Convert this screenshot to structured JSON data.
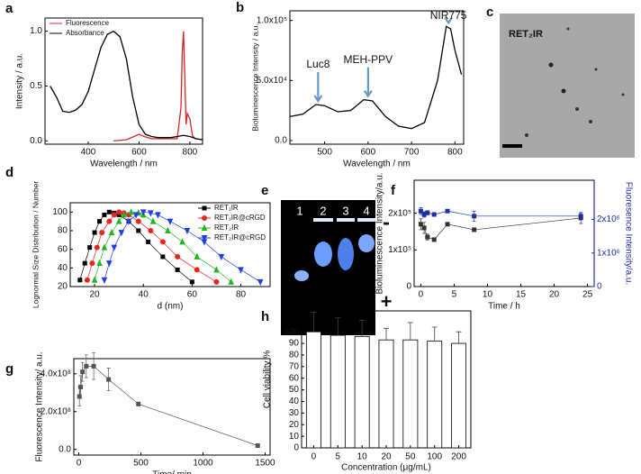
{
  "panel_labels": [
    "a",
    "b",
    "c",
    "d",
    "e",
    "f",
    "g",
    "h"
  ],
  "image_c": {
    "label": "RET₂IR"
  },
  "gel": {
    "lanes": [
      "1",
      "2",
      "3",
      "4"
    ],
    "signs": [
      "-",
      "+"
    ]
  },
  "chart_data": [
    {
      "type": "line",
      "xlabel": "Wavelength / nm",
      "ylabel": "Intensity / a.u.",
      "xlim": [
        230,
        850
      ],
      "xticks": [
        400,
        600,
        800
      ],
      "ylim": [
        -0.03,
        1.12
      ],
      "yticks": [
        {
          "value": 0,
          "label": "0.0"
        },
        {
          "value": 0.5,
          "label": "0.5"
        },
        {
          "value": 1,
          "label": "1.0"
        }
      ],
      "legend": "upper left",
      "series": [
        {
          "name": "Fluorescence",
          "color": "#d62728",
          "x": [
            500,
            550,
            580,
            600,
            620,
            650,
            700,
            750,
            765,
            770,
            775,
            780,
            785,
            790,
            800,
            810,
            820,
            850
          ],
          "values": [
            0,
            0.01,
            0.04,
            0.06,
            0.04,
            0.02,
            0.02,
            0.02,
            0.3,
            0.8,
            1.0,
            0.6,
            0.15,
            0.25,
            0.2,
            0.05,
            0.02,
            0.01
          ]
        },
        {
          "name": "Absorbance",
          "color": "#000000",
          "x": [
            250,
            275,
            300,
            325,
            350,
            375,
            400,
            425,
            450,
            475,
            500,
            525,
            550,
            575,
            600,
            625,
            650,
            675,
            700,
            725,
            750,
            775,
            800,
            825,
            850
          ],
          "values": [
            0.5,
            0.4,
            0.27,
            0.26,
            0.28,
            0.33,
            0.45,
            0.65,
            0.85,
            0.97,
            1.0,
            0.95,
            0.75,
            0.4,
            0.15,
            0.06,
            0.04,
            0.03,
            0.03,
            0.03,
            0.04,
            0.05,
            0.04,
            0.02,
            0.01
          ]
        }
      ]
    },
    {
      "type": "line",
      "xlabel": "Wavelength / nm",
      "ylabel": "Bioluminescence Intensity / a.u.",
      "xlim": [
        420,
        820
      ],
      "xticks": [
        500,
        600,
        700,
        800
      ],
      "ylim": [
        -3000,
        108000
      ],
      "yticks": [
        {
          "value": 0,
          "label": "0.0"
        },
        {
          "value": 50000,
          "label": "5.0x10⁴"
        },
        {
          "value": 100000,
          "label": "1.0x10⁵"
        }
      ],
      "annotations": [
        {
          "text": "Luc8",
          "x": 485
        },
        {
          "text": "MEH-PPV",
          "x": 600
        },
        {
          "text": "NIR775",
          "x": 785
        }
      ],
      "series": [
        {
          "color": "#000000",
          "x": [
            420,
            450,
            480,
            500,
            530,
            560,
            590,
            610,
            640,
            670,
            700,
            730,
            760,
            780,
            790,
            800,
            815
          ],
          "values": [
            20000,
            22000,
            30000,
            29000,
            24000,
            25000,
            34000,
            33000,
            20000,
            12000,
            10000,
            15000,
            50000,
            95000,
            93000,
            75000,
            55000
          ]
        }
      ]
    },
    {
      "type": "line",
      "xlabel": "d (nm)",
      "ylabel": "Lognormal Size Distribution / Number",
      "xlim": [
        10,
        92
      ],
      "xticks": [
        20,
        40,
        60,
        80
      ],
      "ylim": [
        20,
        110
      ],
      "yticks": [
        20,
        40,
        60,
        80,
        100
      ],
      "legend": "upper right",
      "series": [
        {
          "name": "RET₁IR",
          "color": "#000000",
          "marker": "square",
          "x": [
            14,
            16,
            18,
            20,
            22,
            24,
            26,
            28,
            30,
            34,
            38,
            42,
            48,
            54,
            60
          ],
          "values": [
            27,
            45,
            62,
            78,
            90,
            97,
            100,
            99,
            97,
            90,
            80,
            68,
            52,
            38,
            25
          ]
        },
        {
          "name": "RET₁IR@cRGD",
          "color": "#e8261c",
          "marker": "circle",
          "x": [
            17,
            19,
            21,
            23,
            26,
            28,
            30,
            32,
            34,
            38,
            43,
            48,
            54,
            62,
            70
          ],
          "values": [
            27,
            45,
            62,
            78,
            90,
            97,
            100,
            99,
            97,
            90,
            80,
            68,
            52,
            38,
            25
          ]
        },
        {
          "name": "RET₂IR",
          "color": "#1fb81f",
          "marker": "triangle",
          "x": [
            20,
            22,
            24,
            27,
            30,
            32,
            35,
            38,
            40,
            44,
            50,
            56,
            62,
            70,
            76
          ],
          "values": [
            27,
            45,
            62,
            78,
            90,
            97,
            100,
            99,
            97,
            90,
            80,
            68,
            52,
            38,
            25
          ]
        },
        {
          "name": "RET₂IR@cRGD",
          "color": "#1f3fe8",
          "marker": "triangle-down",
          "x": [
            24,
            26,
            28,
            31,
            34,
            37,
            40,
            43,
            46,
            51,
            58,
            65,
            72,
            80,
            88
          ],
          "values": [
            27,
            45,
            62,
            78,
            90,
            97,
            100,
            99,
            97,
            90,
            80,
            68,
            52,
            38,
            25
          ]
        }
      ]
    },
    {
      "type": "line",
      "xlabel": "Time / h",
      "ylabel": "Bioluminescence Intensity/a.u.",
      "y2label": "Fluoresence Intensity/a.u.",
      "xlim": [
        -1,
        26
      ],
      "xticks": [
        0,
        5,
        10,
        15,
        20,
        25
      ],
      "ylim": [
        0,
        290000
      ],
      "yticks": [
        0,
        {
          "value": 100000,
          "label": "1x10⁵"
        },
        {
          "value": 200000,
          "label": "2x10⁵"
        }
      ],
      "y2lim": [
        0,
        3170000
      ],
      "y2ticks": [
        0,
        {
          "value": 1000000,
          "label": "1x10⁶"
        },
        {
          "value": 2000000,
          "label": "2x10⁶"
        }
      ],
      "series": [
        {
          "color": "#333333",
          "marker": "square",
          "x": [
            0,
            0.5,
            1,
            2,
            4,
            8,
            24
          ],
          "values": [
            170000,
            160000,
            135000,
            128000,
            170000,
            155000,
            187000
          ],
          "errors": [
            15000,
            15000,
            8000,
            5000,
            3000,
            3000,
            15000
          ]
        },
        {
          "color": "#1f2fa8",
          "marker": "square",
          "axis": "y2",
          "x": [
            0,
            0.5,
            1,
            2,
            4,
            8,
            24
          ],
          "values": [
            2250000,
            2150000,
            2200000,
            2150000,
            2250000,
            2100000,
            2100000
          ],
          "errors": [
            100000,
            80000,
            60000,
            50000,
            40000,
            150000,
            100000
          ]
        }
      ]
    },
    {
      "type": "line",
      "xlabel": "Time/ min",
      "ylabel": "Fluorescence Intensity/ a.u.",
      "xlim": [
        -40,
        1540
      ],
      "xticks": [
        0,
        500,
        1000,
        1500
      ],
      "ylim": [
        -30000000,
        480000000
      ],
      "yticks": [
        {
          "value": 0,
          "label": "0.0"
        },
        {
          "value": 200000000,
          "label": "2.0x10⁸"
        },
        {
          "value": 400000000,
          "label": "4.0x10⁸"
        }
      ],
      "series": [
        {
          "color": "#555555",
          "marker": "square",
          "x": [
            5,
            15,
            30,
            60,
            120,
            240,
            480,
            1440
          ],
          "values": [
            280000000,
            330000000,
            410000000,
            440000000,
            440000000,
            370000000,
            240000000,
            20000000
          ],
          "errors": [
            50000000,
            60000000,
            50000000,
            60000000,
            70000000,
            60000000,
            10000000,
            10000000
          ]
        }
      ]
    },
    {
      "type": "bar",
      "xlabel": "Concentration (μg/mL)",
      "ylabel": "Cell viability %",
      "categories": [
        "0",
        "5",
        "10",
        "20",
        "50",
        "100",
        "200"
      ],
      "values": [
        100,
        97,
        96,
        93,
        93,
        92,
        90
      ],
      "errors": [
        17,
        15,
        14,
        10,
        15,
        12,
        10
      ],
      "color": "#ffffff",
      "ylim": [
        0,
        118
      ],
      "yticks": [
        0,
        10,
        20,
        30,
        40,
        50,
        60,
        70,
        80,
        90,
        100
      ]
    }
  ]
}
